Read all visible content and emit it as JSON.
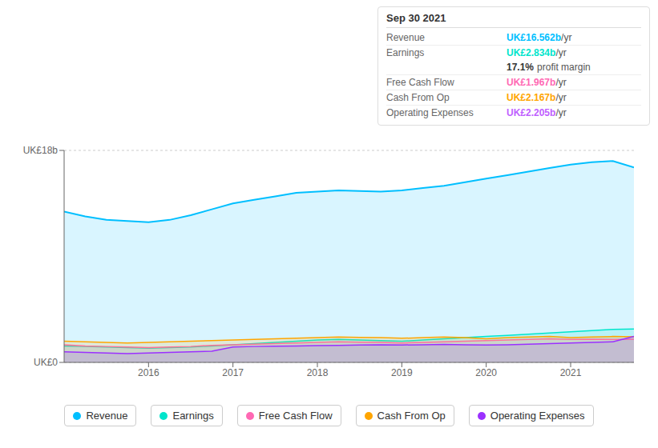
{
  "chart_data": {
    "type": "area",
    "title": "Sep 30 2021",
    "x": [
      2015.0,
      2015.25,
      2015.5,
      2015.75,
      2016.0,
      2016.25,
      2016.5,
      2016.75,
      2017.0,
      2017.25,
      2017.5,
      2017.75,
      2018.0,
      2018.25,
      2018.5,
      2018.75,
      2019.0,
      2019.25,
      2019.5,
      2019.75,
      2020.0,
      2020.25,
      2020.5,
      2020.75,
      2021.0,
      2021.25,
      2021.5,
      2021.75
    ],
    "series": [
      {
        "name": "Revenue",
        "color": "#00bfff",
        "values": [
          12800000000,
          12400000000,
          12100000000,
          12000000000,
          11900000000,
          12100000000,
          12500000000,
          13000000000,
          13500000000,
          13800000000,
          14100000000,
          14400000000,
          14500000000,
          14600000000,
          14550000000,
          14500000000,
          14600000000,
          14800000000,
          15000000000,
          15300000000,
          15600000000,
          15900000000,
          16200000000,
          16500000000,
          16800000000,
          17000000000,
          17100000000,
          16562000000
        ]
      },
      {
        "name": "Earnings",
        "color": "#00e5cc",
        "values": [
          1400000000,
          1350000000,
          1300000000,
          1250000000,
          1200000000,
          1250000000,
          1300000000,
          1400000000,
          1500000000,
          1600000000,
          1700000000,
          1800000000,
          1900000000,
          1950000000,
          1900000000,
          1850000000,
          1800000000,
          1900000000,
          2000000000,
          2100000000,
          2200000000,
          2300000000,
          2400000000,
          2500000000,
          2600000000,
          2700000000,
          2800000000,
          2834000000
        ]
      },
      {
        "name": "Free Cash Flow",
        "color": "#ff69b4",
        "values": [
          1500000000,
          1400000000,
          1350000000,
          1300000000,
          1250000000,
          1300000000,
          1350000000,
          1450000000,
          1500000000,
          1550000000,
          1600000000,
          1650000000,
          1700000000,
          1750000000,
          1720000000,
          1700000000,
          1650000000,
          1700000000,
          1750000000,
          1800000000,
          1850000000,
          1900000000,
          1950000000,
          2000000000,
          1950000000,
          1970000000,
          1950000000,
          1967000000
        ]
      },
      {
        "name": "Cash From Op",
        "color": "#ffa500",
        "values": [
          1800000000,
          1750000000,
          1700000000,
          1650000000,
          1700000000,
          1750000000,
          1800000000,
          1850000000,
          1900000000,
          1950000000,
          2000000000,
          2050000000,
          2100000000,
          2150000000,
          2120000000,
          2100000000,
          2050000000,
          2100000000,
          2150000000,
          2100000000,
          2000000000,
          2100000000,
          2150000000,
          2200000000,
          2100000000,
          2150000000,
          2200000000,
          2167000000
        ]
      },
      {
        "name": "Operating Expenses",
        "color": "#9b30ff",
        "values": [
          900000000,
          850000000,
          800000000,
          750000000,
          800000000,
          850000000,
          900000000,
          950000000,
          1300000000,
          1350000000,
          1380000000,
          1400000000,
          1420000000,
          1450000000,
          1480000000,
          1500000000,
          1480000000,
          1500000000,
          1520000000,
          1500000000,
          1480000000,
          1500000000,
          1550000000,
          1600000000,
          1650000000,
          1700000000,
          1750000000,
          2205000000
        ]
      }
    ],
    "xlim": [
      2015.0,
      2021.75
    ],
    "xticks": [
      2016,
      2017,
      2018,
      2019,
      2020,
      2021
    ],
    "ylim": [
      0,
      18000000000
    ],
    "yticks": [
      {
        "value": 0,
        "label": "UK£0"
      },
      {
        "value": 18000000000,
        "label": "UK£18b"
      }
    ],
    "grid": true,
    "legend": "bottom",
    "annotations": [
      {
        "label": "Revenue",
        "text": "UK£16.562b",
        "unit": "/yr",
        "color": "#00bfff"
      },
      {
        "label": "Earnings",
        "text": "UK£2.834b",
        "unit": "/yr",
        "color": "#00e5cc"
      },
      {
        "text": "17.1%",
        "unit": "profit margin"
      },
      {
        "label": "Free Cash Flow",
        "text": "UK£1.967b",
        "unit": "/yr",
        "color": "#ff69b4"
      },
      {
        "label": "Cash From Op",
        "text": "UK£2.167b",
        "unit": "/yr",
        "color": "#ffa500"
      },
      {
        "label": "Operating Expenses",
        "text": "UK£2.205b",
        "unit": "/yr",
        "color": "#bf5fff"
      }
    ]
  }
}
